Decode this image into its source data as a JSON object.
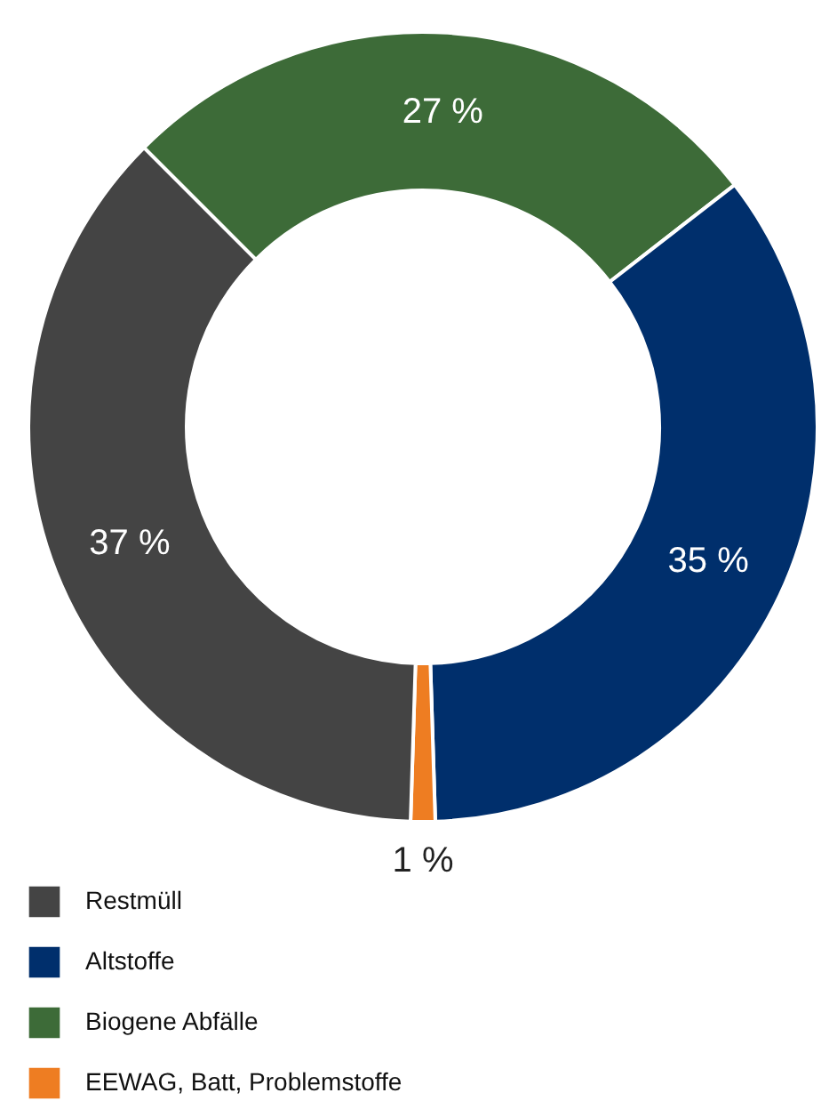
{
  "chart_data": {
    "type": "donut",
    "categories": [
      "Biogene Abfälle",
      "Altstoffe",
      "EEWAG, Batt, Problemstoffe",
      "Restmüll"
    ],
    "values": [
      27,
      35,
      1,
      37
    ],
    "colors": [
      "#3d6b38",
      "#002f6c",
      "#ee7d22",
      "#444444"
    ],
    "value_labels": [
      "27 %",
      "35 %",
      "1 %",
      "37 %"
    ],
    "legend": "bottom left"
  }
}
